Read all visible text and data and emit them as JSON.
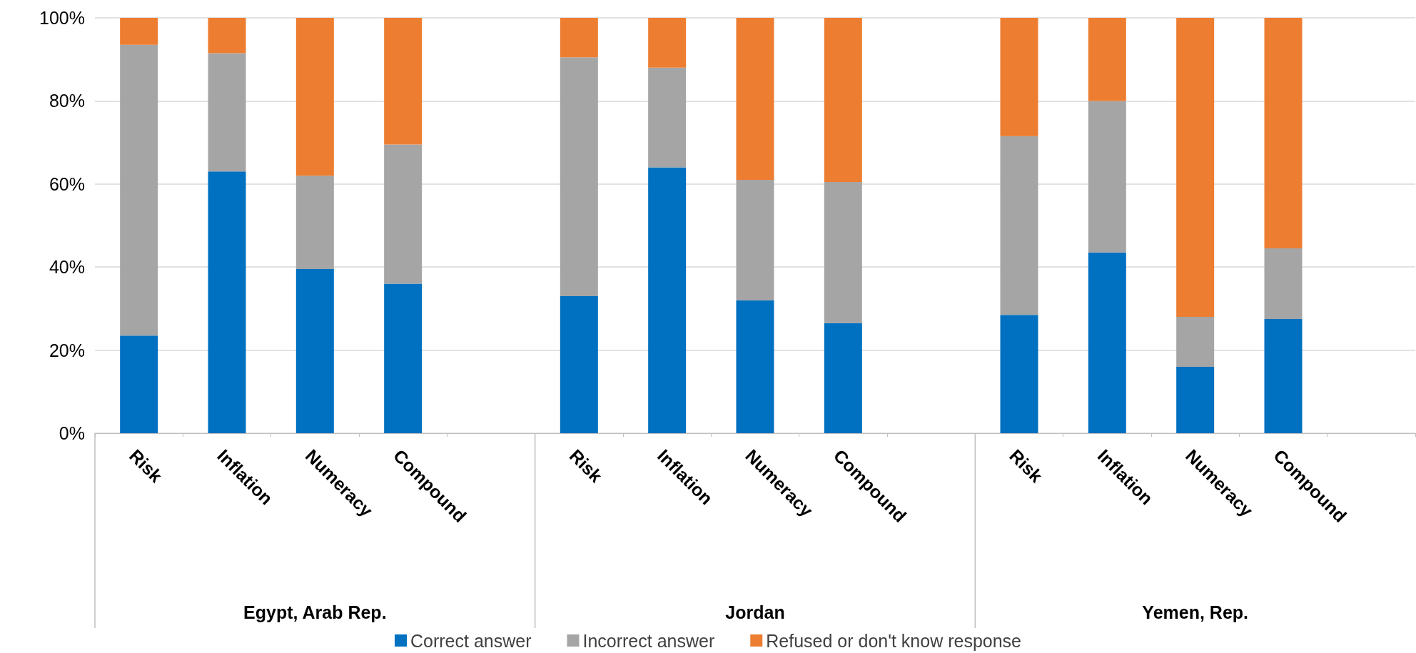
{
  "chart_data": {
    "type": "bar",
    "stacked": true,
    "categories": [
      "Risk",
      "Inflation",
      "Numeracy",
      "Compound",
      null,
      "Risk",
      "Inflation",
      "Numeracy",
      "Compound",
      null,
      "Risk",
      "Inflation",
      "Numeracy",
      "Compound",
      null
    ],
    "series": [
      {
        "name": "Correct answer",
        "color": "#0070c0",
        "values": [
          23.5,
          63,
          39.5,
          36,
          null,
          33,
          64,
          32,
          26.5,
          null,
          28.5,
          43.5,
          16,
          27.5,
          null
        ]
      },
      {
        "name": "Incorrect answer",
        "color": "#a5a5a5",
        "values": [
          70,
          28.5,
          22.5,
          33.5,
          null,
          57.5,
          24,
          29,
          34,
          null,
          43,
          36.5,
          12,
          17,
          null
        ]
      },
      {
        "name": "Refused or don't know response",
        "color": "#ed7d31",
        "values": [
          6.5,
          8.5,
          38,
          30.5,
          null,
          9.5,
          12,
          39,
          39.5,
          null,
          28.5,
          20,
          72,
          55.5,
          null
        ]
      }
    ],
    "annotations": [
      "Egypt, Arab Rep.",
      "Jordan",
      "Yemen, Rep."
    ],
    "ylim": [
      0,
      100
    ],
    "yticks": [
      {
        "value": 0,
        "label": "0%"
      },
      {
        "value": 20,
        "label": "20%"
      },
      {
        "value": 40,
        "label": "40%"
      },
      {
        "value": 60,
        "label": "60%"
      },
      {
        "value": 80,
        "label": "80%"
      },
      {
        "value": 100,
        "label": "100%"
      }
    ],
    "grid": "y",
    "legend": "bottom"
  }
}
